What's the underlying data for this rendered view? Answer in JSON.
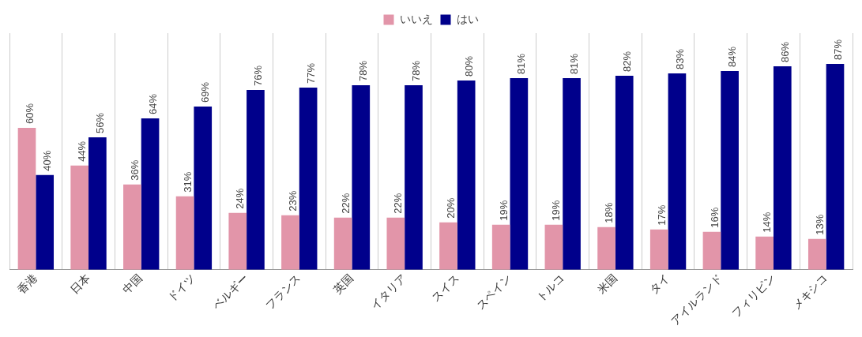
{
  "chart_data": {
    "type": "bar",
    "categories": [
      "香港",
      "日本",
      "中国",
      "ドイツ",
      "ベルギー",
      "フランス",
      "英国",
      "イタリア",
      "スイス",
      "スペイン",
      "トルコ",
      "米国",
      "タイ",
      "アイルランド",
      "フィリピン",
      "メキシコ"
    ],
    "series": [
      {
        "name": "いいえ",
        "color": "#e295a9",
        "values": [
          60,
          44,
          36,
          31,
          24,
          23,
          22,
          22,
          20,
          19,
          19,
          18,
          17,
          16,
          14,
          13
        ],
        "value_labels": [
          "60%",
          "44%",
          "36%",
          "31%",
          "24%",
          "23%",
          "22%",
          "22%",
          "20%",
          "19%",
          "19%",
          "18%",
          "17%",
          "16%",
          "14%",
          "13%"
        ]
      },
      {
        "name": "はい",
        "color": "#00008b",
        "values": [
          40,
          56,
          64,
          69,
          76,
          77,
          78,
          78,
          80,
          81,
          81,
          82,
          83,
          84,
          86,
          87
        ],
        "value_labels": [
          "40%",
          "56%",
          "64%",
          "69%",
          "76%",
          "77%",
          "78%",
          "78%",
          "80%",
          "81%",
          "81%",
          "82%",
          "83%",
          "84%",
          "86%",
          "87%"
        ]
      }
    ],
    "grid": "x",
    "legend": "top",
    "tick_labels": "x"
  }
}
